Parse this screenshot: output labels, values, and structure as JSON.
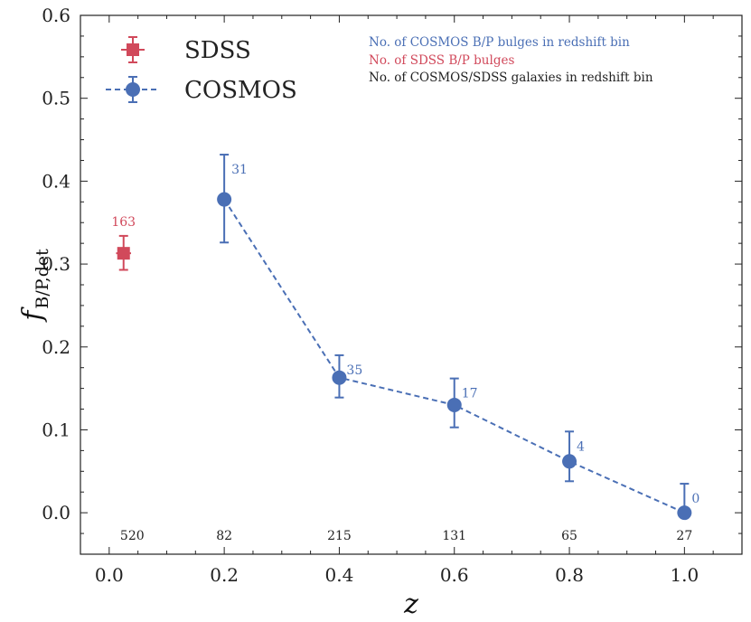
{
  "chart_data": {
    "type": "scatter",
    "xlabel": "z",
    "ylabel": "f",
    "ylabel_subscript": "B/P,det",
    "xlim": [
      -0.05,
      1.1
    ],
    "ylim": [
      -0.05,
      0.6
    ],
    "xticks": [
      "0.0",
      "0.2",
      "0.4",
      "0.6",
      "0.8",
      "1.0"
    ],
    "yticks": [
      "0.0",
      "0.1",
      "0.2",
      "0.3",
      "0.4",
      "0.5",
      "0.6"
    ],
    "series": [
      {
        "name": "SDSS",
        "marker": "square",
        "line": "none",
        "color": "#d1495b",
        "points": [
          {
            "x": 0.025,
            "y": 0.313,
            "yerr_low": 0.293,
            "yerr_high": 0.334,
            "xerr_low": 0.012,
            "xerr_high": 0.038,
            "label": "163"
          }
        ]
      },
      {
        "name": "COSMOS",
        "marker": "circle",
        "line": "dashed",
        "color": "#4a6fb5",
        "points": [
          {
            "x": 0.2,
            "y": 0.378,
            "yerr_low": 0.326,
            "yerr_high": 0.432,
            "label": "31"
          },
          {
            "x": 0.4,
            "y": 0.163,
            "yerr_low": 0.139,
            "yerr_high": 0.19,
            "label": "35"
          },
          {
            "x": 0.6,
            "y": 0.13,
            "yerr_low": 0.103,
            "yerr_high": 0.162,
            "label": "17"
          },
          {
            "x": 0.8,
            "y": 0.062,
            "yerr_low": 0.038,
            "yerr_high": 0.098,
            "label": "4"
          },
          {
            "x": 1.0,
            "y": 0.0,
            "yerr_low": 0.0,
            "yerr_high": 0.035,
            "label": "0"
          }
        ]
      }
    ],
    "counts_y": -0.027,
    "total_counts": [
      {
        "x": 0.04,
        "label": "520"
      },
      {
        "x": 0.2,
        "label": "82"
      },
      {
        "x": 0.4,
        "label": "215"
      },
      {
        "x": 0.6,
        "label": "131"
      },
      {
        "x": 0.8,
        "label": "65"
      },
      {
        "x": 1.0,
        "label": "27"
      }
    ],
    "legend": {
      "placement": "top-left",
      "entries": [
        {
          "label": "SDSS",
          "series": 0
        },
        {
          "label": "COSMOS",
          "series": 1
        }
      ]
    },
    "notes": [
      {
        "text": "No. of COSMOS B/P bulges in redshift bin",
        "color": "#4a6fb5"
      },
      {
        "text": "No. of SDSS B/P bulges",
        "color": "#d1495b"
      },
      {
        "text": "No. of COSMOS/SDSS galaxies in redshift bin",
        "color": "#222222"
      }
    ],
    "count_label_color": "#222222"
  }
}
